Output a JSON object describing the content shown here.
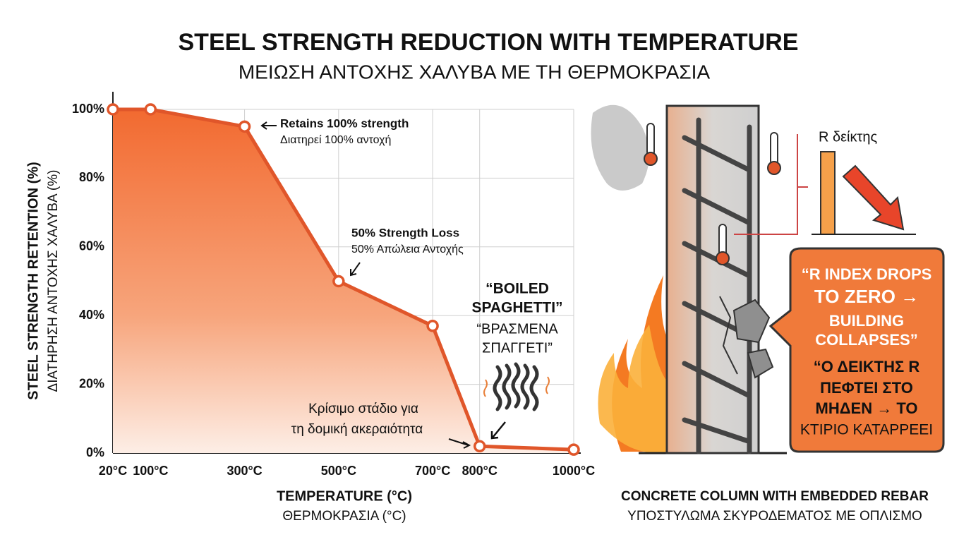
{
  "chart_data": {
    "type": "area",
    "title": "STEEL STRENGTH  REDUCTION WITH TEMPERATURE",
    "subtitle": "ΜΕΙΩΣΗ ΑΝΤΟΧΗΣ ΧΑΛΥΒΑ ΜΕ ΤΗ ΘΕΡΜΟΚΡΑΣΙΑ",
    "x_label": "TEMPERATURE (°C)",
    "x_label_secondary": "ΘΕΡΜΟΚΡΑΣΙΑ (°C)",
    "y_label": "STEEL STRENGTH RETENTION (%)",
    "y_label_secondary": "ΔΙΑΤΗΡΗΣΗ ΑΝΤΟΧΗΣ ΧΑΛΥΒΑ (%)",
    "x": [
      20,
      100,
      300,
      500,
      700,
      800,
      1000
    ],
    "values": [
      100,
      100,
      95,
      50,
      37,
      2,
      1
    ],
    "xlim": [
      20,
      1000
    ],
    "xticks": [
      {
        "value": 20,
        "label": "20°C"
      },
      {
        "value": 100,
        "label": "100°C"
      },
      {
        "value": 300,
        "label": "300°C"
      },
      {
        "value": 500,
        "label": "500°C"
      },
      {
        "value": 700,
        "label": "700°C"
      },
      {
        "value": 800,
        "label": "800°C"
      },
      {
        "value": 1000,
        "label": "1000°C"
      }
    ],
    "ylim": [
      0,
      100
    ],
    "yticks": [
      {
        "value": 0,
        "label": "0%"
      },
      {
        "value": 20,
        "label": "20%"
      },
      {
        "value": 40,
        "label": "40%"
      },
      {
        "value": 60,
        "label": "60%"
      },
      {
        "value": 80,
        "label": "80%"
      },
      {
        "value": 100,
        "label": "100%"
      }
    ],
    "color": "#e0562a",
    "grid": true,
    "annotations": [
      {
        "lines": [
          "Retains 100% strength",
          "Διατηρεί 100% αντοχή"
        ]
      },
      {
        "lines": [
          "50% Strength Loss",
          "50% Απώλεια Αντοχής"
        ]
      },
      {
        "lines": [
          "“BOILED",
          "SPAGHETTI”",
          "“ΒΡΑΣΜΕΝΑ",
          "ΣΠΑΓΓΕΤΙ”"
        ]
      },
      {
        "lines": [
          "Κρίσιμο στάδιο για",
          "τη δομική ακεραιότητα"
        ]
      }
    ]
  },
  "illustration": {
    "r_label": "R δείκτης",
    "callout": [
      "“R INDEX DROPS",
      "TO ZERO →",
      "BUILDING",
      "COLLAPSES”",
      "“Ο ΔΕΙΚΤΗΣ R",
      "ΠΕΦΤΕΙ ΣΤΟ",
      "ΜΗΔΕΝ → ΤΟ",
      "ΚΤΙΡΙΟ ΚΑΤΑΡΡΕΕΙ"
    ],
    "caption": "CONCRETE COLUMN WITH EMBEDDED REBAR",
    "caption_secondary": "ΥΠΟΣΤΥΛΩΜΑ ΣΚΥΡΟΔΕΜΑΤΟΣ ΜΕ ΟΠΛΙΣΜΟ"
  }
}
